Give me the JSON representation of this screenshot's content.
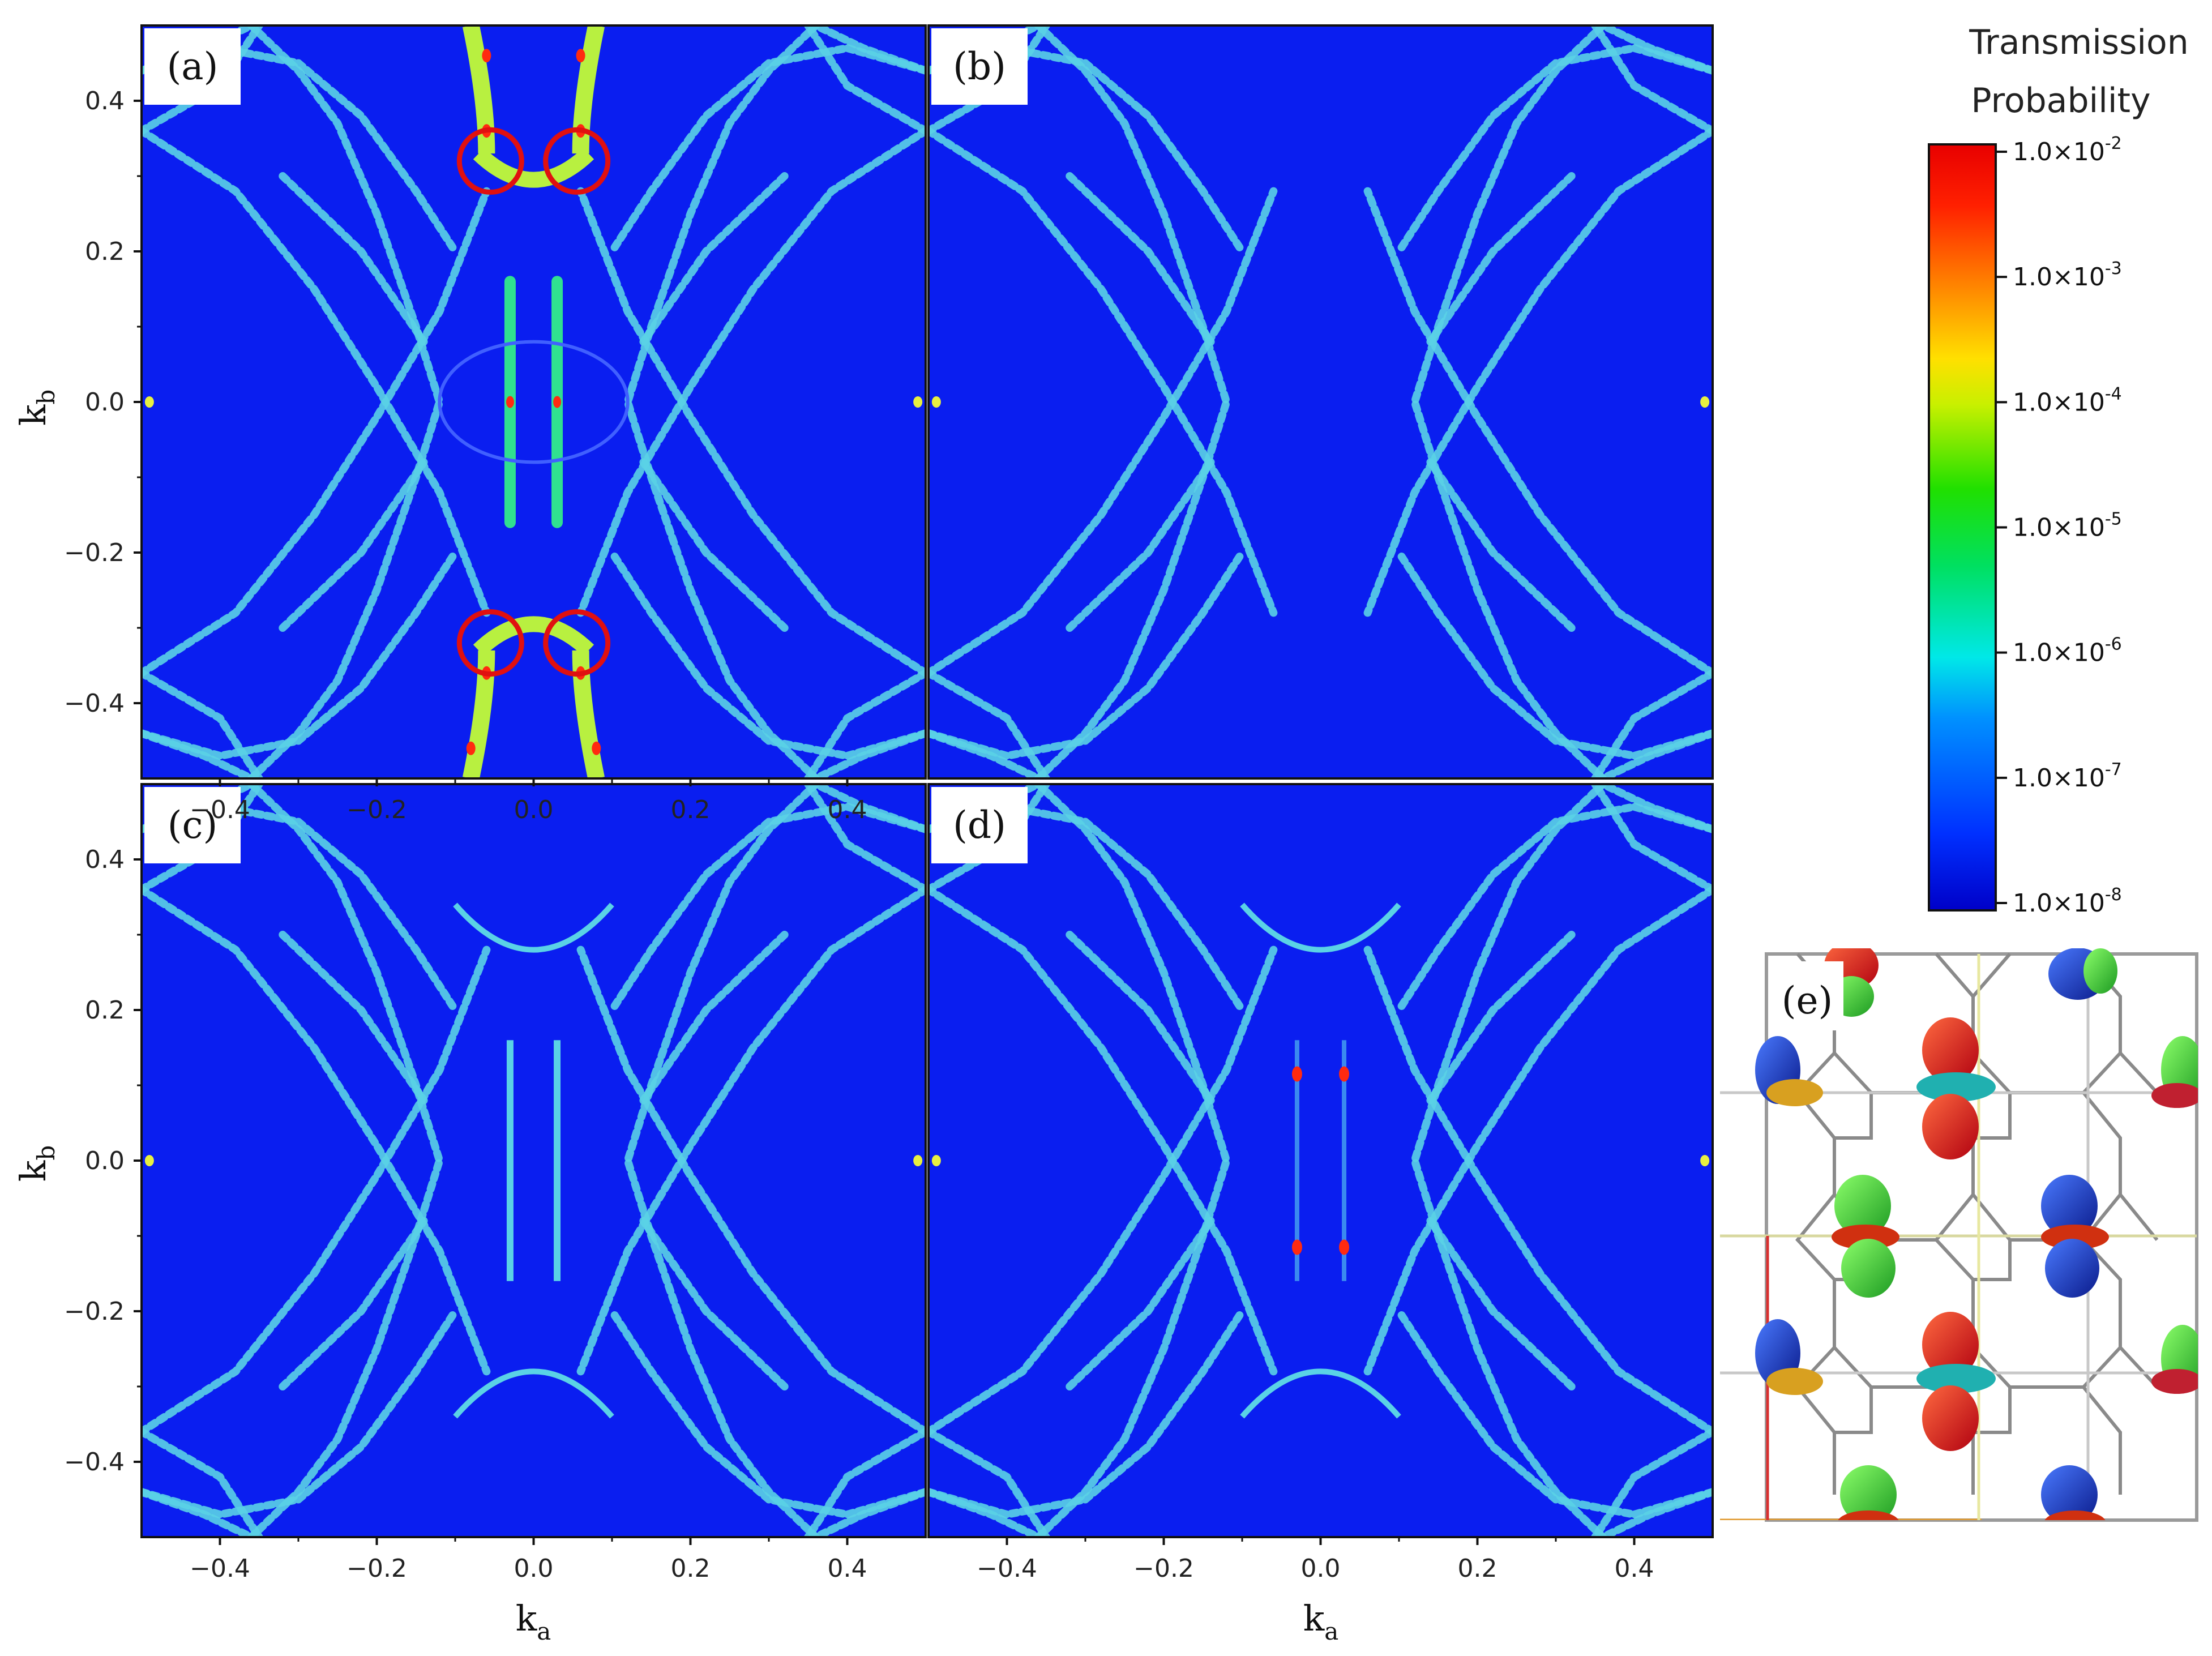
{
  "chart_data": [
    {
      "type": "heatmap",
      "panel": "(a)",
      "xlabel": "",
      "ylabel": "k_b",
      "xlim": [
        -0.5,
        0.5
      ],
      "ylim": [
        -0.5,
        0.5
      ],
      "x_ticks": [
        "-0.4",
        "-0.2",
        "0.0",
        "0.2",
        "0.4"
      ],
      "y_ticks": [
        "0.4",
        "0.2",
        "0.0",
        "-0.2",
        "-0.4"
      ],
      "background_value": "1.0x10^-8",
      "annotations": [
        {
          "shape": "circle",
          "color": "#e01010",
          "x": -0.055,
          "y": 0.32
        },
        {
          "shape": "circle",
          "color": "#e01010",
          "x": 0.055,
          "y": 0.32
        },
        {
          "shape": "circle",
          "color": "#e01010",
          "x": -0.055,
          "y": -0.32
        },
        {
          "shape": "circle",
          "color": "#e01010",
          "x": 0.055,
          "y": -0.32
        }
      ]
    },
    {
      "type": "heatmap",
      "panel": "(b)",
      "xlabel": "",
      "ylabel": "",
      "xlim": [
        -0.5,
        0.5
      ],
      "ylim": [
        -0.5,
        0.5
      ],
      "background_value": "1.0x10^-8"
    },
    {
      "type": "heatmap",
      "panel": "(c)",
      "xlabel": "k_a",
      "ylabel": "k_b",
      "xlim": [
        -0.5,
        0.5
      ],
      "ylim": [
        -0.5,
        0.5
      ],
      "x_ticks": [
        "-0.4",
        "-0.2",
        "0.0",
        "0.2",
        "0.4"
      ],
      "y_ticks": [
        "0.4",
        "0.2",
        "0.0",
        "-0.2",
        "-0.4"
      ],
      "background_value": "1.0x10^-8"
    },
    {
      "type": "heatmap",
      "panel": "(d)",
      "xlabel": "k_a",
      "ylabel": "",
      "xlim": [
        -0.5,
        0.5
      ],
      "ylim": [
        -0.5,
        0.5
      ],
      "x_ticks": [
        "-0.4",
        "-0.2",
        "0.0",
        "0.2",
        "0.4"
      ],
      "background_value": "1.0x10^-8"
    }
  ],
  "labels": {
    "a": "(a)",
    "b": "(b)",
    "c": "(c)",
    "d": "(d)",
    "e": "(e)",
    "x_ticks": [
      "−0.4",
      "−0.2",
      "0.0",
      "0.2",
      "0.4"
    ],
    "y_ticks": [
      "0.4",
      "0.2",
      "0.0",
      "−0.2",
      "−0.4"
    ],
    "k_main": "k",
    "ka_sub": "a",
    "kb_sub": "b"
  },
  "colorbar": {
    "title_line1": "Transmission",
    "title_line2": "Probability",
    "scale": "log",
    "ticks": [
      {
        "base": "1.0×10",
        "exp": "-2"
      },
      {
        "base": "1.0×10",
        "exp": "-3"
      },
      {
        "base": "1.0×10",
        "exp": "-4"
      },
      {
        "base": "1.0×10",
        "exp": "-5"
      },
      {
        "base": "1.0×10",
        "exp": "-6"
      },
      {
        "base": "1.0×10",
        "exp": "-7"
      },
      {
        "base": "1.0×10",
        "exp": "-8"
      }
    ],
    "colors": [
      "#0000c8",
      "#0030ff",
      "#0090ff",
      "#00e8e8",
      "#00e060",
      "#20e000",
      "#c8f000",
      "#ffe000",
      "#ff8000",
      "#ff2000",
      "#e80000"
    ]
  },
  "colors": {
    "background": "#0a1ef0",
    "feature": "#5ad2e6",
    "hot": "#ff2a10",
    "annotation": "#e01010"
  }
}
